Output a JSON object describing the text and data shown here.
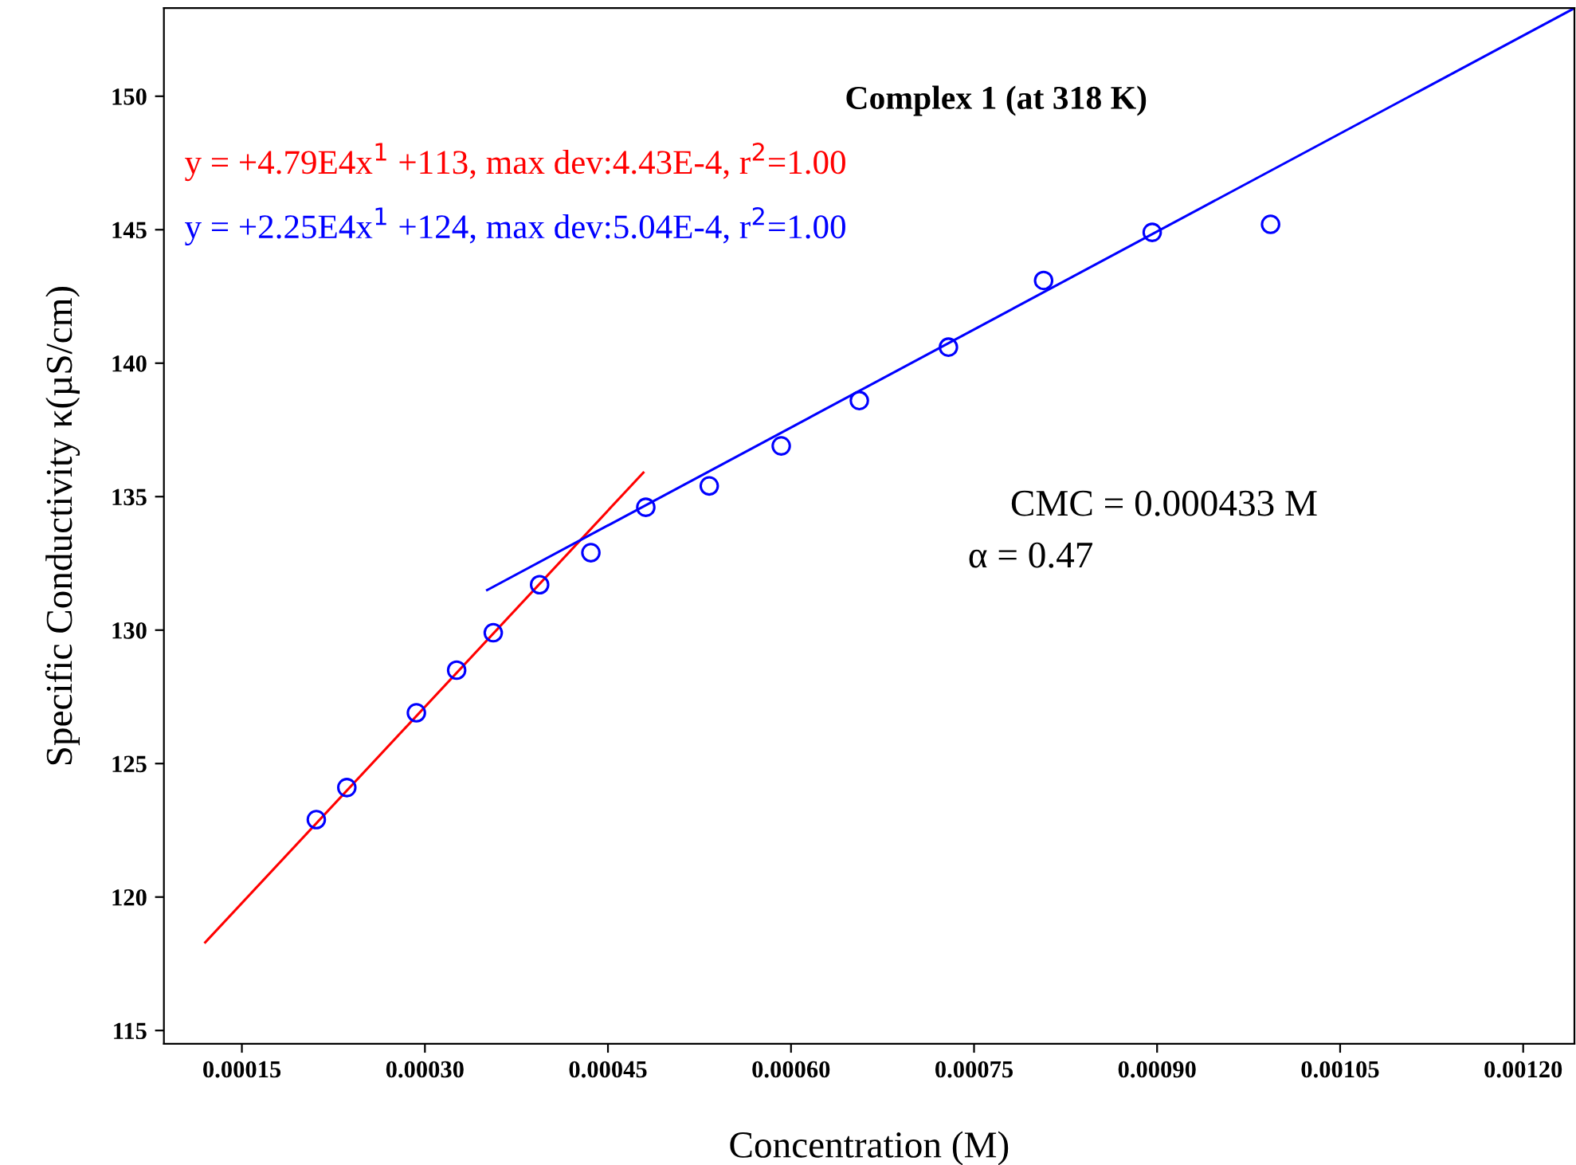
{
  "chart_data": {
    "type": "scatter",
    "title": "Complex 1 (at 318 K)",
    "xlabel": "Concentration (M)",
    "ylabel": "Specific Conductivity κ(µS/cm)",
    "series": [
      {
        "color": "#0000ff",
        "marker": "circle",
        "x": [
          0.000211,
          0.000236,
          0.000293,
          0.000326,
          0.000356,
          0.000394,
          0.000436,
          0.000481,
          0.000533,
          0.000592,
          0.000656,
          0.000729,
          0.000807,
          0.000896,
          0.000993
        ],
        "values": [
          122.9,
          124.1,
          126.9,
          128.5,
          129.9,
          131.7,
          132.9,
          134.6,
          135.4,
          136.9,
          138.6,
          140.6,
          143.1,
          144.9,
          145.2
        ]
      },
      {
        "type": "line",
        "name": "y = +4.79E4x$^{1}$ +113, max dev:4.43E-4, r$^{2}$=1.00",
        "color": "#ff0000",
        "line_style": "solid",
        "x": [
          0.00012,
          0.000479
        ],
        "values": [
          118.3,
          135.9
        ]
      },
      {
        "type": "line",
        "name": "y = +2.25E4x$^{1}$ +124, max dev:5.04E-4, r$^{2}$=1.00",
        "color": "#0000ff",
        "line_style": "solid",
        "x": [
          0.000351,
          0.001242
        ],
        "values": [
          131.5,
          153.3
        ]
      }
    ],
    "annotations": [
      "CMC = 0.000433 M",
      "α = 0.47"
    ],
    "xlim": [
      8.61e-05,
      0.001242
    ],
    "ylim": [
      114.5,
      153.3
    ],
    "xticks": [
      {
        "value": 0.00015,
        "label": "0.00015"
      },
      {
        "value": 0.0003,
        "label": "0.00030"
      },
      {
        "value": 0.00045,
        "label": "0.00045"
      },
      {
        "value": 0.0006,
        "label": "0.00060"
      },
      {
        "value": 0.00075,
        "label": "0.00075"
      },
      {
        "value": 0.0009,
        "label": "0.00090"
      },
      {
        "value": 0.00105,
        "label": "0.00105"
      },
      {
        "value": 0.0012,
        "label": "0.00120"
      }
    ],
    "yticks": [
      115,
      120,
      125,
      130,
      135,
      140,
      145,
      150
    ],
    "grid": false,
    "legend": "top left"
  }
}
